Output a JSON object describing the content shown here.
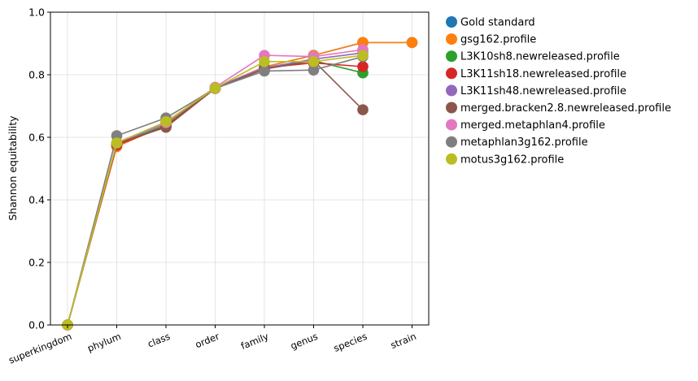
{
  "chart_data": {
    "type": "line",
    "title": "",
    "xlabel": "",
    "ylabel": "Shannon equitability",
    "ylim": [
      0,
      1.0
    ],
    "yticks": [
      "0.0",
      "0.2",
      "0.4",
      "0.6",
      "0.8",
      "1.0"
    ],
    "grid": true,
    "legend_position": "outside-right",
    "categories": [
      "superkingdom",
      "phylum",
      "class",
      "order",
      "family",
      "genus",
      "species",
      "strain"
    ],
    "series": [
      {
        "name": "Gold standard",
        "color": "#1f77b4",
        "values": [
          0.0,
          0.575,
          0.64,
          0.758,
          0.825,
          0.862,
          0.903,
          0.903
        ]
      },
      {
        "name": "gsg162.profile",
        "color": "#ff7f0e",
        "values": [
          0.0,
          0.57,
          0.64,
          0.758,
          0.825,
          0.862,
          0.903,
          0.903
        ]
      },
      {
        "name": "L3K10sh8.newreleased.profile",
        "color": "#2ca02c",
        "values": [
          0.0,
          0.578,
          0.638,
          0.757,
          0.82,
          0.845,
          0.806,
          null
        ]
      },
      {
        "name": "L3K11sh18.newreleased.profile",
        "color": "#d62728",
        "values": [
          0.0,
          0.575,
          0.635,
          0.757,
          0.822,
          0.838,
          0.826,
          null
        ]
      },
      {
        "name": "L3K11sh48.newreleased.profile",
        "color": "#9467bd",
        "values": [
          0.0,
          0.58,
          0.645,
          0.759,
          0.822,
          0.85,
          0.87,
          null
        ]
      },
      {
        "name": "merged.bracken2.8.newreleased.profile",
        "color": "#8c564b",
        "values": [
          0.0,
          0.58,
          0.632,
          0.756,
          0.818,
          0.845,
          0.688,
          null
        ]
      },
      {
        "name": "merged.metaphlan4.profile",
        "color": "#e377c2",
        "values": [
          0.0,
          0.583,
          0.647,
          0.76,
          0.862,
          0.858,
          0.88,
          null
        ]
      },
      {
        "name": "metaphlan3g162.profile",
        "color": "#7f7f7f",
        "values": [
          0.0,
          0.605,
          0.662,
          0.756,
          0.812,
          0.815,
          0.858,
          null
        ]
      },
      {
        "name": "motus3g162.profile",
        "color": "#bcbd22",
        "values": [
          0.0,
          0.582,
          0.65,
          0.757,
          0.842,
          0.842,
          0.862,
          null
        ]
      }
    ]
  }
}
